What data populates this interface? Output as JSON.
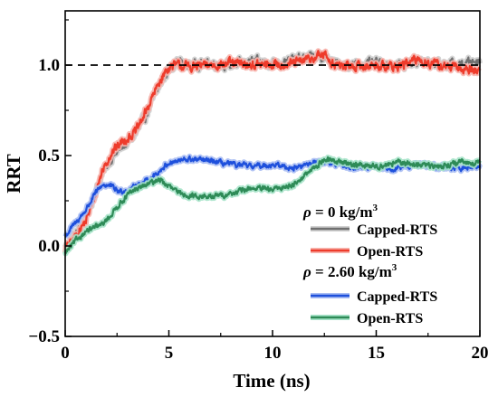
{
  "chart_data": {
    "type": "line",
    "xlabel": "Time (ns)",
    "ylabel": "RRT",
    "xlim": [
      0,
      20
    ],
    "ylim": [
      -0.5,
      1.3
    ],
    "xticks": [
      "0",
      "5",
      "10",
      "15",
      "20"
    ],
    "yticks": [
      "−0.5",
      "0.0",
      "0.5",
      "1.0"
    ],
    "reference_line": {
      "y": 1.0,
      "style": "dashed",
      "color": "#000000"
    },
    "legend": {
      "placement": "bottom-right",
      "groups": [
        {
          "heading_symbol": "ρ",
          "heading_value": " = 0 kg/m",
          "heading_sup": "3",
          "series": [
            "Capped-RTS",
            "Open-RTS"
          ]
        },
        {
          "heading_symbol": "ρ",
          "heading_value": " = 2.60 kg/m",
          "heading_sup": "3",
          "series": [
            "Capped-RTS",
            "Open-RTS"
          ]
        }
      ]
    },
    "series": [
      {
        "name": "Capped-RTS",
        "group": 0,
        "color": "#707070",
        "halo": "#cfcfcf",
        "noise": 0.028,
        "x": [
          0,
          0.3,
          0.6,
          1.0,
          1.4,
          1.8,
          2.2,
          2.6,
          3.0,
          3.4,
          3.8,
          4.2,
          4.6,
          5.0,
          5.4,
          6.0,
          7,
          8,
          9,
          10,
          11,
          12,
          12.5,
          13,
          14,
          15,
          16,
          17,
          18,
          19,
          20
        ],
        "y": [
          0.0,
          0.03,
          0.08,
          0.15,
          0.28,
          0.4,
          0.48,
          0.53,
          0.57,
          0.62,
          0.7,
          0.8,
          0.9,
          0.98,
          1.02,
          1.0,
          1.01,
          1.0,
          1.02,
          1.01,
          1.03,
          1.05,
          1.04,
          1.01,
          1.0,
          1.01,
          1.0,
          1.02,
          1.01,
          1.0,
          1.03
        ]
      },
      {
        "name": "Open-RTS",
        "group": 0,
        "color": "#ee3b2b",
        "halo": "#f7b5ae",
        "noise": 0.028,
        "x": [
          0,
          0.3,
          0.6,
          1.0,
          1.4,
          1.8,
          2.2,
          2.6,
          3.0,
          3.4,
          3.8,
          4.2,
          4.6,
          5.0,
          5.4,
          6.0,
          7,
          8,
          9,
          10,
          11,
          12,
          12.5,
          13,
          14,
          15,
          16,
          17,
          18,
          19,
          20
        ],
        "y": [
          -0.02,
          0.02,
          0.07,
          0.14,
          0.27,
          0.42,
          0.51,
          0.56,
          0.6,
          0.63,
          0.72,
          0.82,
          0.92,
          0.99,
          1.0,
          0.99,
          1.0,
          1.01,
          1.0,
          1.0,
          1.01,
          1.04,
          1.06,
          1.0,
          0.99,
          1.0,
          0.99,
          1.03,
          1.0,
          0.98,
          0.97
        ]
      },
      {
        "name": "Capped-RTS",
        "group": 1,
        "color": "#1e50dc",
        "halo": "#a9bdf3",
        "noise": 0.016,
        "x": [
          0,
          0.3,
          0.6,
          1.0,
          1.4,
          1.8,
          2.2,
          2.6,
          3.0,
          3.5,
          4.0,
          4.5,
          5.0,
          5.5,
          6.0,
          7,
          8,
          9,
          10,
          11,
          12,
          12.5,
          13,
          14,
          15,
          16,
          17,
          18,
          19,
          20
        ],
        "y": [
          0.05,
          0.1,
          0.14,
          0.2,
          0.28,
          0.34,
          0.33,
          0.3,
          0.31,
          0.34,
          0.36,
          0.41,
          0.46,
          0.47,
          0.48,
          0.47,
          0.45,
          0.44,
          0.45,
          0.43,
          0.46,
          0.47,
          0.45,
          0.43,
          0.44,
          0.43,
          0.45,
          0.44,
          0.43,
          0.44
        ]
      },
      {
        "name": "Open-RTS",
        "group": 1,
        "color": "#2e8b57",
        "halo": "#a6e3c9",
        "noise": 0.016,
        "x": [
          0,
          0.3,
          0.6,
          1.0,
          1.4,
          1.8,
          2.2,
          2.6,
          3.0,
          3.5,
          4.0,
          4.5,
          5.0,
          5.5,
          6.0,
          7,
          8,
          9,
          10,
          11,
          12,
          12.5,
          13,
          14,
          15,
          16,
          17,
          18,
          19,
          20
        ],
        "y": [
          -0.04,
          0.0,
          0.04,
          0.08,
          0.1,
          0.12,
          0.17,
          0.23,
          0.28,
          0.32,
          0.34,
          0.37,
          0.33,
          0.29,
          0.28,
          0.27,
          0.29,
          0.32,
          0.31,
          0.34,
          0.43,
          0.48,
          0.47,
          0.45,
          0.44,
          0.46,
          0.45,
          0.44,
          0.46,
          0.46
        ]
      }
    ]
  }
}
